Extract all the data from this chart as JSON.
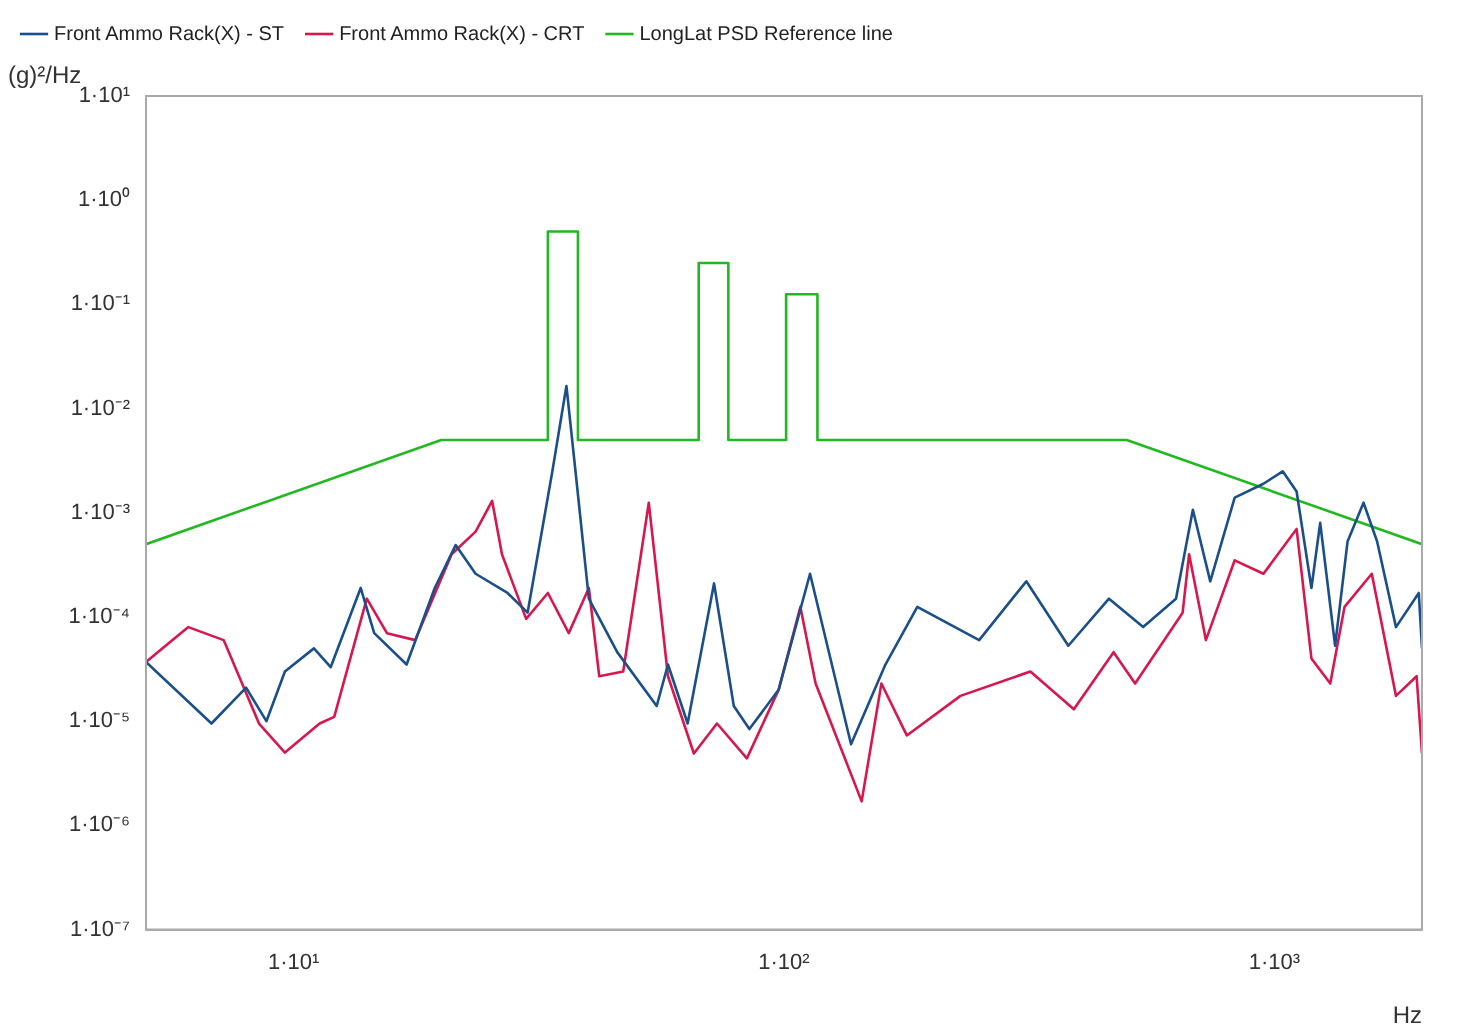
{
  "chart_data": {
    "type": "line",
    "xlabel": "Hz",
    "ylabel": "(g)²/Hz",
    "log": "xy",
    "grid": false,
    "legend": "top",
    "marker": "none",
    "line_style": "solid",
    "xlim": [
      5,
      2000
    ],
    "xticks": [
      {
        "value": 10,
        "label": "1·10¹"
      },
      {
        "value": 100,
        "label": "1·10²"
      },
      {
        "value": 1000,
        "label": "1·10³"
      }
    ],
    "ylim": [
      1e-07,
      10
    ],
    "yticks": [
      {
        "value": 1e-07,
        "label": "1·10⁻⁷"
      },
      {
        "value": 1e-06,
        "label": "1·10⁻⁶"
      },
      {
        "value": 1e-05,
        "label": "1·10⁻⁵"
      },
      {
        "value": 0.0001,
        "label": "1·10⁻⁴"
      },
      {
        "value": 0.001,
        "label": "1·10⁻³"
      },
      {
        "value": 0.01,
        "label": "1·10⁻²"
      },
      {
        "value": 0.1,
        "label": "1·10⁻¹"
      },
      {
        "value": 1,
        "label": "1·10⁰"
      },
      {
        "value": 10,
        "label": "1·10¹"
      }
    ],
    "series": [
      {
        "name": "Front Ammo Rack(X) - ST",
        "color": "#1b4f8a",
        "x": [
          5,
          6.8,
          8,
          8.8,
          9.6,
          11,
          11.9,
          13.7,
          14.6,
          17,
          19.4,
          21.4,
          23.5,
          27.3,
          30,
          33.7,
          36,
          37.8,
          40,
          45.7,
          55,
          58,
          63.6,
          72,
          79,
          85,
          97.5,
          113,
          137,
          161,
          187,
          250,
          312,
          380,
          460,
          540,
          630,
          682,
          740,
          830,
          950,
          1040,
          1110,
          1190,
          1240,
          1330,
          1410,
          1520,
          1620,
          1770,
          1970,
          2000
        ],
        "values": [
          3.7e-05,
          9.5e-06,
          2.1e-05,
          1e-05,
          3e-05,
          5e-05,
          3.3e-05,
          0.00019,
          7e-05,
          3.5e-05,
          0.00019,
          0.00049,
          0.00026,
          0.00017,
          0.00011,
          0.0025,
          0.0165,
          0.0019,
          0.00015,
          4.6e-05,
          1.4e-05,
          3.5e-05,
          9.5e-06,
          0.00021,
          1.4e-05,
          8.4e-06,
          2e-05,
          0.00026,
          6e-06,
          3.5e-05,
          0.000125,
          6e-05,
          0.00022,
          5.3e-05,
          0.00015,
          8e-05,
          0.00015,
          0.00107,
          0.00022,
          0.0014,
          0.0019,
          0.0025,
          0.0016,
          0.00019,
          0.0008,
          5.3e-05,
          0.00053,
          0.00125,
          0.00053,
          8e-05,
          0.00017,
          5e-05
        ]
      },
      {
        "name": "Front Ammo Rack(X) - CRT",
        "color": "#d6184f",
        "x": [
          5,
          6.1,
          7.2,
          8.5,
          9.6,
          11.3,
          12.1,
          14.1,
          15.5,
          17.7,
          21,
          23.5,
          25.4,
          26.6,
          29.8,
          33,
          36.4,
          40,
          42,
          47,
          53,
          58,
          65.5,
          73,
          84,
          97.5,
          108,
          116,
          144,
          158,
          178,
          229,
          318,
          390,
          470,
          520,
          650,
          670,
          725,
          830,
          950,
          1110,
          1190,
          1300,
          1390,
          1580,
          1770,
          1950,
          2000
        ],
        "values": [
          3.7e-05,
          8e-05,
          6e-05,
          9.5e-06,
          5e-06,
          9.5e-06,
          1.1e-05,
          0.00015,
          7e-05,
          6e-05,
          0.0004,
          0.00066,
          0.0013,
          0.0004,
          9.6e-05,
          0.00017,
          7e-05,
          0.00019,
          2.7e-05,
          3e-05,
          0.00125,
          2.7e-05,
          4.9e-06,
          9.5e-06,
          4.4e-06,
          2e-05,
          0.000125,
          2.3e-05,
          1.7e-06,
          2.3e-05,
          7.3e-06,
          1.75e-05,
          3e-05,
          1.3e-05,
          4.6e-05,
          2.3e-05,
          0.00011,
          0.0004,
          6e-05,
          0.00035,
          0.00026,
          0.0007,
          4e-05,
          2.3e-05,
          0.000125,
          0.00026,
          1.75e-05,
          2.7e-05,
          4.9e-06
        ]
      },
      {
        "name": "LongLat PSD Reference line",
        "color": "#22b822",
        "x": [
          5,
          20,
          33,
          33,
          38,
          38,
          67,
          67,
          77,
          77,
          101,
          101,
          117,
          117,
          500,
          2000
        ],
        "values": [
          0.0005,
          0.005,
          0.005,
          0.5,
          0.5,
          0.005,
          0.005,
          0.25,
          0.25,
          0.005,
          0.005,
          0.125,
          0.125,
          0.005,
          0.005,
          0.0005
        ]
      }
    ]
  }
}
